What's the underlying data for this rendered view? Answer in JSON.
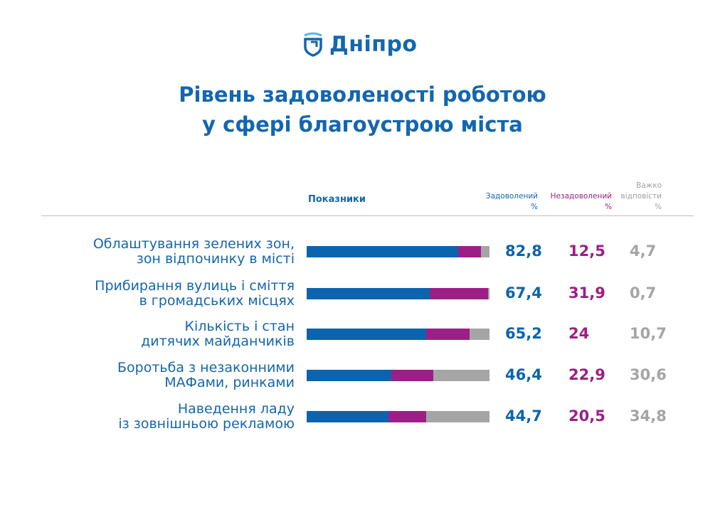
{
  "logo": {
    "text": "Дніпро"
  },
  "title": {
    "line1": "Рівень задоволеності роботою",
    "line2": "у сфері благоустрою міста"
  },
  "colors": {
    "satisfied": "#0b64ad",
    "dissatisfied": "#9b1f86",
    "hard": "#a5a5a5"
  },
  "chart_data": {
    "type": "bar",
    "stacked": true,
    "orientation": "horizontal",
    "header": {
      "indicators": "Показники",
      "satisfied": [
        "Задоволений",
        "%"
      ],
      "dissatisfied": [
        "Незадоволений",
        "%"
      ],
      "hard": [
        "Важко",
        "відповісти",
        "%"
      ]
    },
    "categories": [
      [
        "Облаштування зелених зон,",
        "зон відпочинку в місті"
      ],
      [
        "Прибирання вулиць і сміття",
        "в громадських місцях"
      ],
      [
        "Кількість і стан",
        "дитячих майданчиків"
      ],
      [
        "Боротьба з незаконними",
        "МАФами, ринками"
      ],
      [
        "Наведення ладу",
        "із зовнішньою рекламою"
      ]
    ],
    "series": [
      {
        "name": "Задоволений",
        "values": [
          82.8,
          67.4,
          65.2,
          46.4,
          44.7
        ],
        "labels": [
          "82,8",
          "67,4",
          "65,2",
          "46,4",
          "44,7"
        ]
      },
      {
        "name": "Незадоволений",
        "values": [
          12.5,
          31.9,
          24,
          22.9,
          20.5
        ],
        "labels": [
          "12,5",
          "31,9",
          "24",
          "22,9",
          "20,5"
        ]
      },
      {
        "name": "Важко відповісти",
        "values": [
          4.7,
          0.7,
          10.7,
          30.6,
          34.8
        ],
        "labels": [
          "4,7",
          "0,7",
          "10,7",
          "30,6",
          "34,8"
        ]
      }
    ]
  }
}
